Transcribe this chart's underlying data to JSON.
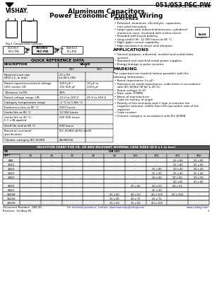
{
  "title_part": "051/053 PEC-PW",
  "title_brand": "Vishay BCcomponents",
  "title_main1": "Aluminum Capacitors",
  "title_main2": "Power Economic Printed Wiring",
  "features_title": "FEATURES",
  "features": [
    "Polarized  aluminum  electrolytic  capacitors,\nnon-solid electrolyte",
    "Large types with reduced dimensions, cylindrical\naluminum case, insulated with a blue sleeve",
    "Provided with keyed polarity",
    "Long useful life: 12 000 hours at 85 °C",
    "High ripple current capability",
    "High resistance to shock and vibration"
  ],
  "applications_title": "APPLICATIONS",
  "applications": [
    "General purpose, industrial, medical and audio/video\nsystems",
    "Standard and switched mode power supplies",
    "Energy storage in pulse systems"
  ],
  "marking_title": "MARKING",
  "marking_text": "The capacitors are marked (where possible) with the\nfollowing information:",
  "marking_items": [
    "Rated capacitance (in μF)",
    "Tolerance on rated capacitance, code letter in accordance\nwith IEC 60062 (M for ± 20 %)",
    "Rated voltage (in V)",
    "Date code (YYMM)",
    "Name of manufacturer",
    "Code for factory of origin",
    "Polarity of the terminals and − sign to indicate the\nnegative terminal, visible from the top and/or side of the\ncapacitor",
    "Code number",
    "Climatic category in accordance with IEC 60068"
  ],
  "qrd_title": "QUICK REFERENCE DATA",
  "qrd_rows": [
    [
      "Nominal case size\n(Ø D x L, in mm)",
      "25 x 50\nto 40 x 100",
      ""
    ],
    [
      "Rated capacitance/rated voltage\n(051 series) CR",
      "1000 μF /\n150 000 μF",
      "10 μF to\n2200 μF"
    ],
    [
      "Tolerance (±CR)",
      "20%",
      ""
    ],
    [
      "Rated voltage range, UR",
      "10 V to 100 V",
      "25 V to 500 V"
    ],
    [
      "Category temperature range",
      "-1 °C to 1.4th °C",
      ""
    ],
    [
      "Endurance test at 85 °C",
      "5000 hours",
      ""
    ],
    [
      "Useful life at 85 °C",
      "12 000 hours",
      ""
    ],
    [
      "Useful life at 40 °C,\n0.1 x IA applied",
      "200 000 hours",
      ""
    ],
    [
      "Shelf life and at 85 °C",
      "500 hours",
      ""
    ],
    [
      "Based on sectional\nspecification",
      "IEC 60384 a6/50 a6/40",
      ""
    ],
    [
      "Climatic category IEC 60068",
      "40/085/56",
      ""
    ]
  ],
  "sel_title": "SELECTION CHART FOR CR, UR AND RELEVANT NOMINAL CASE SIZES (Ø D x L in mm)",
  "sel_cr_header": "CR\n(μF)",
  "sel_ur_header": "UR (V)",
  "sel_voltages": [
    "10",
    "16",
    "25",
    "40",
    "63",
    "100",
    "200",
    "250",
    "400"
  ],
  "sel_rows": [
    [
      "680",
      "-",
      "-",
      "-",
      "-",
      "-",
      "-",
      "-",
      "25 x 80",
      "25 x 80"
    ],
    [
      "1000",
      "-",
      "-",
      "-",
      "-",
      "-",
      "-",
      "-",
      "25 x 80",
      "25 x 80"
    ],
    [
      "1500",
      "-",
      "-",
      "-",
      "-",
      "-",
      "-",
      "25 x 80",
      "30 x 40",
      "30 x 40"
    ],
    [
      "2200",
      "-",
      "-",
      "-",
      "-",
      "-",
      "-",
      "25 x 40",
      "25 x 40",
      "25 x 40"
    ],
    [
      "3300",
      "-",
      "-",
      "-",
      "-",
      "-",
      "-",
      "30 x 40",
      "30 x 50",
      "30 x 50"
    ],
    [
      "",
      "-",
      "-",
      "-",
      "-",
      "-",
      "-",
      "-",
      "40 x 80",
      "40 x 80"
    ],
    [
      "4700",
      "-",
      "-",
      "-",
      "-",
      "-",
      "25 x 60",
      "40 x 50",
      "40 x 50",
      "-"
    ],
    [
      "6800",
      "-",
      "-",
      "-",
      "-",
      "-",
      "-",
      "40 x 40",
      "-",
      "-"
    ],
    [
      "10000",
      "-",
      "-",
      "-",
      "-",
      "25 x 60",
      "40 x 50",
      "40 x 100",
      "40 x 100",
      "-"
    ],
    [
      "15000",
      "-",
      "-",
      "-",
      "-",
      "30 x 40",
      "40 x 75",
      "40 x 75",
      "-",
      "-"
    ],
    [
      "22000",
      "-",
      "-",
      "-",
      "-",
      "25 x 50",
      "35 x 60",
      "40 x 100",
      "-",
      "-"
    ]
  ],
  "footer_doc": "Document Number:  280-49",
  "footer_contact": "For technical questions, contact: aluminumcaps@vishay.com",
  "footer_web": "www.vishay.com",
  "footer_rev": "Revision: 1st Aug 08",
  "footer_page": "1"
}
